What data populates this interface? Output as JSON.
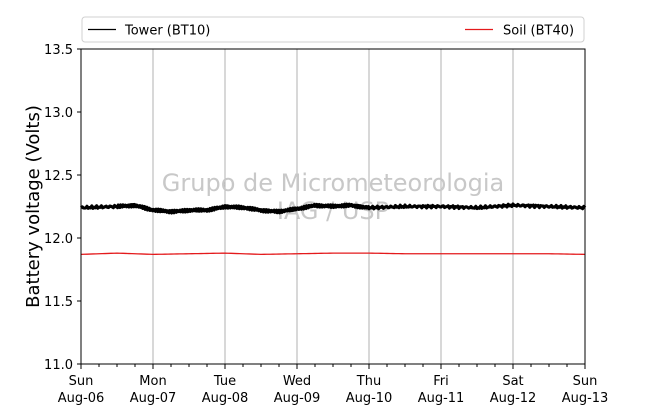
{
  "chart_data": {
    "type": "line",
    "title": "",
    "xlabel": "",
    "ylabel": "Battery voltage (Volts)",
    "watermark": [
      "Grupo de Micrometeorologia",
      "IAG / USP"
    ],
    "ylim": [
      11.0,
      13.5
    ],
    "y_ticks": [
      "11.0",
      "11.5",
      "12.0",
      "12.5",
      "13.0",
      "13.5"
    ],
    "x_range": [
      "2017-08-06",
      "2017-08-13"
    ],
    "x_ticks": [
      {
        "day": "Sun",
        "date": "Aug-06"
      },
      {
        "day": "Mon",
        "date": "Aug-07"
      },
      {
        "day": "Tue",
        "date": "Aug-08"
      },
      {
        "day": "Wed",
        "date": "Aug-09"
      },
      {
        "day": "Thu",
        "date": "Aug-10"
      },
      {
        "day": "Fri",
        "date": "Aug-11"
      },
      {
        "day": "Sat",
        "date": "Aug-12"
      },
      {
        "day": "Sun",
        "date": "Aug-13"
      }
    ],
    "grid": "vertical",
    "legend_position": "top, above plot",
    "series": [
      {
        "name": "Tower (BT10)",
        "color": "#000000",
        "x": [
          "2017-08-06 00:00",
          "2017-08-06 12:00",
          "2017-08-06 18:00",
          "2017-08-07 00:00",
          "2017-08-07 06:00",
          "2017-08-07 12:00",
          "2017-08-07 18:00",
          "2017-08-08 00:00",
          "2017-08-08 06:00",
          "2017-08-08 12:00",
          "2017-08-08 18:00",
          "2017-08-09 00:00",
          "2017-08-09 06:00",
          "2017-08-09 12:00",
          "2017-08-09 18:00",
          "2017-08-10 00:00",
          "2017-08-10 12:00",
          "2017-08-11 00:00",
          "2017-08-11 12:00",
          "2017-08-12 00:00",
          "2017-08-12 12:00",
          "2017-08-13 00:00"
        ],
        "values": [
          12.24,
          12.25,
          12.26,
          12.22,
          12.21,
          12.22,
          12.22,
          12.25,
          12.24,
          12.22,
          12.21,
          12.23,
          12.26,
          12.25,
          12.26,
          12.24,
          12.25,
          12.25,
          12.24,
          12.26,
          12.25,
          12.24
        ]
      },
      {
        "name": "Soil (BT40)",
        "color": "#e41a1c",
        "x": [
          "2017-08-06 00:00",
          "2017-08-06 12:00",
          "2017-08-07 00:00",
          "2017-08-07 12:00",
          "2017-08-08 00:00",
          "2017-08-08 12:00",
          "2017-08-09 00:00",
          "2017-08-09 12:00",
          "2017-08-10 00:00",
          "2017-08-10 12:00",
          "2017-08-11 00:00",
          "2017-08-11 12:00",
          "2017-08-12 00:00",
          "2017-08-12 12:00",
          "2017-08-13 00:00"
        ],
        "values": [
          11.87,
          11.88,
          11.87,
          11.875,
          11.88,
          11.87,
          11.875,
          11.88,
          11.88,
          11.875,
          11.875,
          11.875,
          11.875,
          11.875,
          11.87
        ]
      }
    ]
  }
}
